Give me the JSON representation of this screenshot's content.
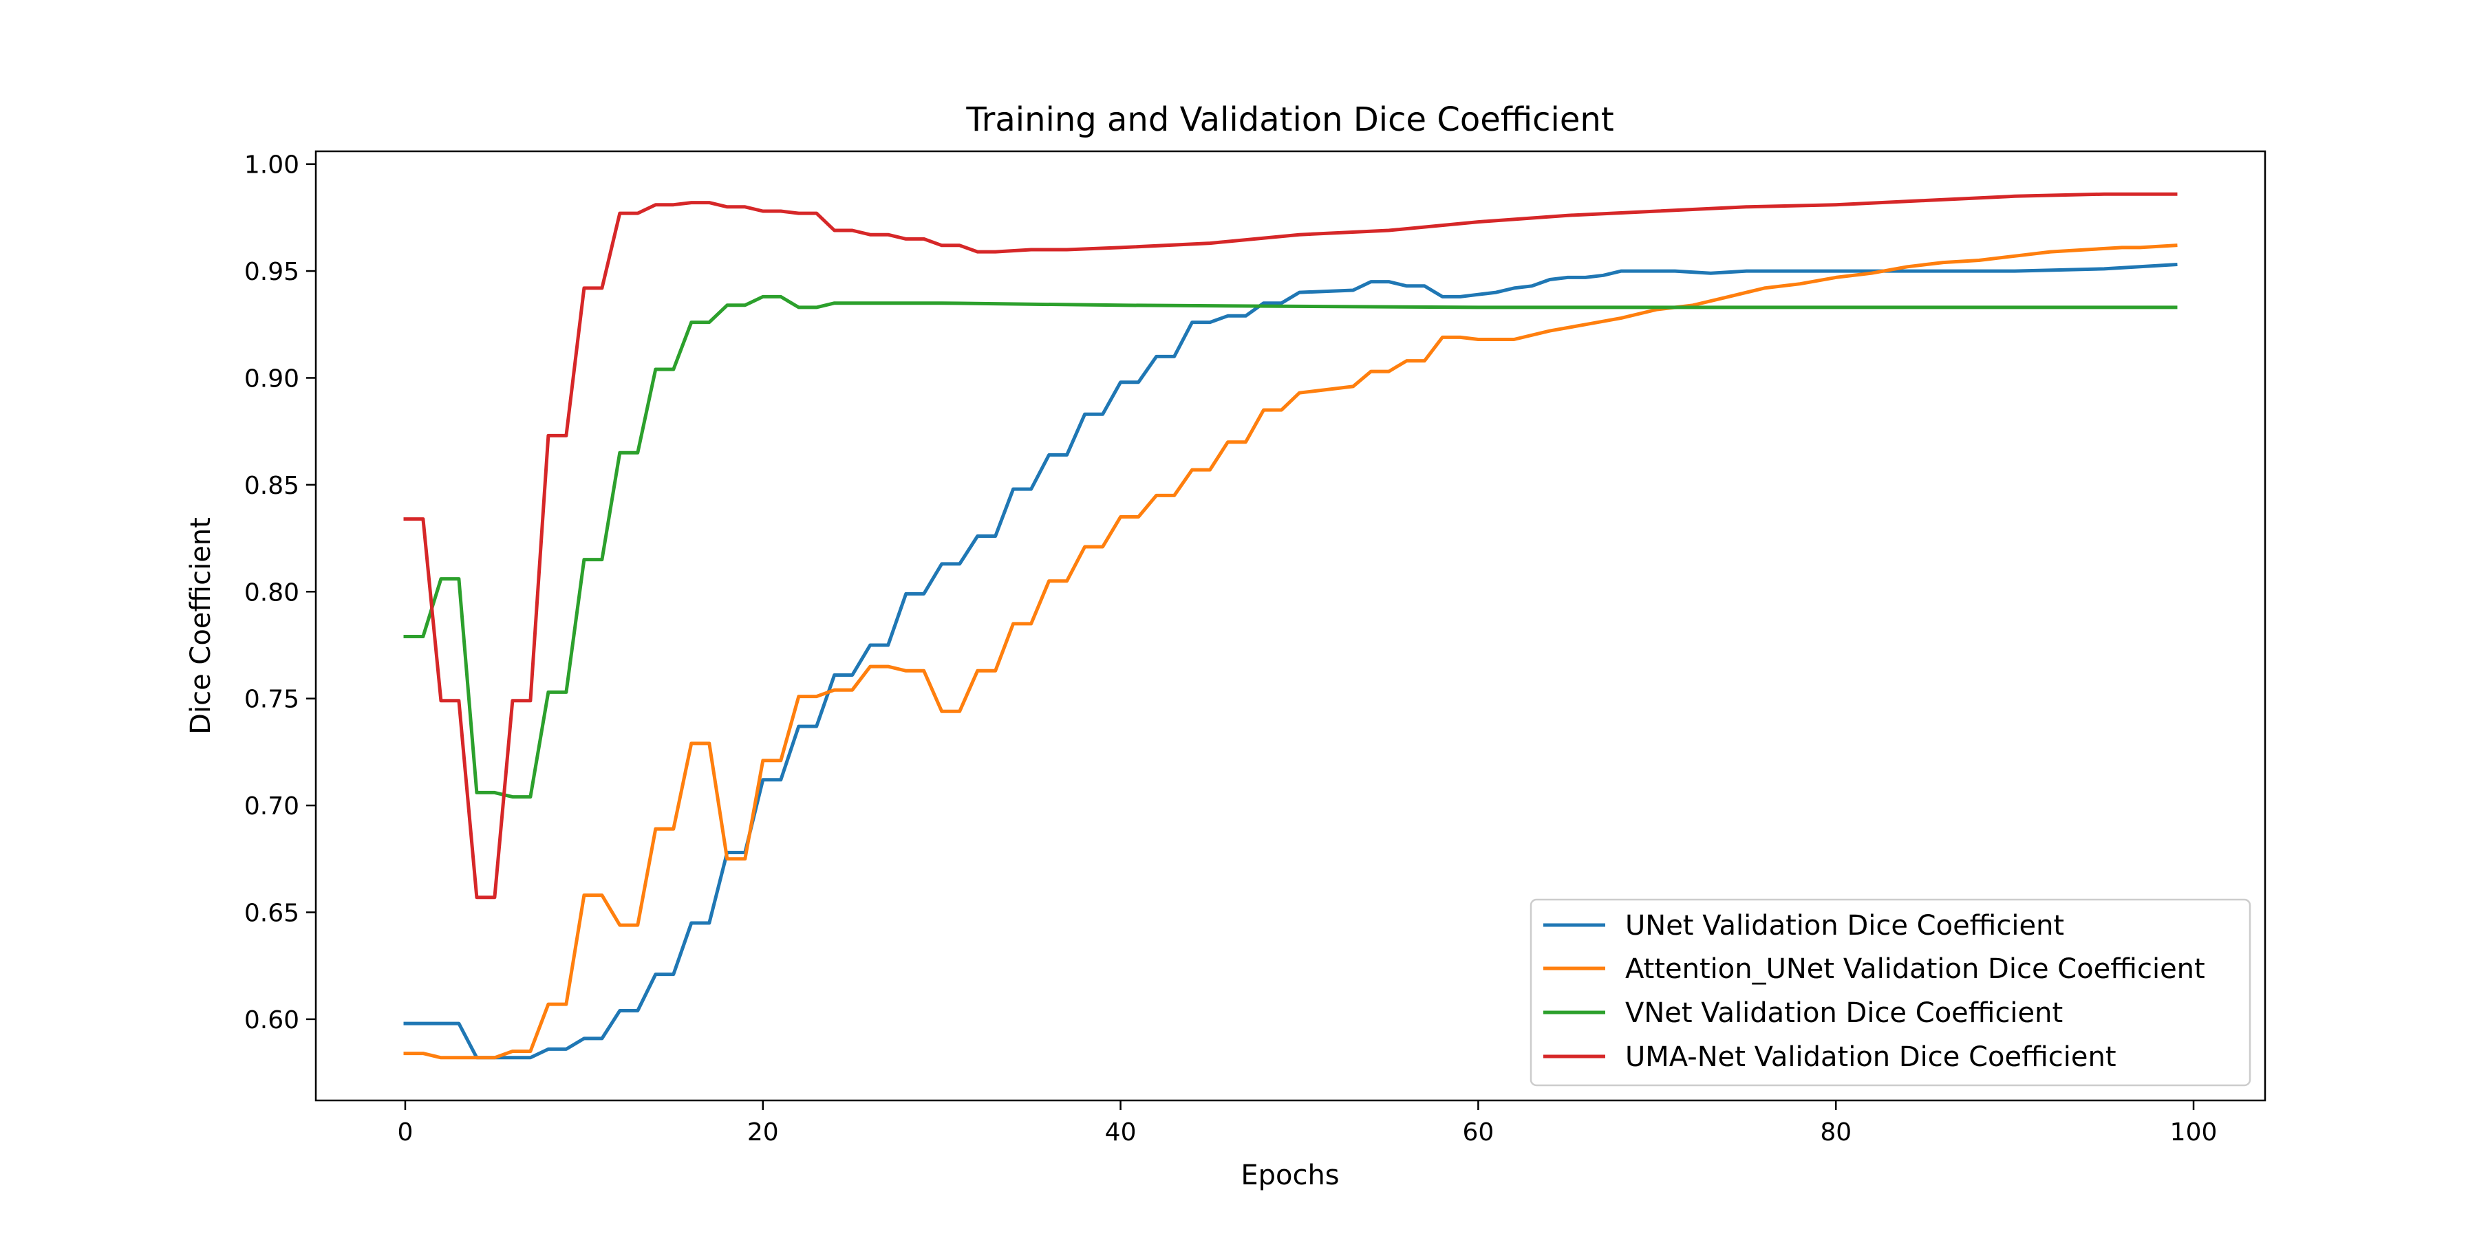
{
  "chart_data": {
    "type": "line",
    "title": "Training and Validation Dice Coefficient",
    "xlabel": "Epochs",
    "ylabel": "Dice Coefficient",
    "xlim": [
      -5,
      104
    ],
    "ylim": [
      0.562,
      1.006
    ],
    "xticks": [
      0,
      20,
      40,
      60,
      80,
      100
    ],
    "yticks": [
      0.6,
      0.65,
      0.7,
      0.75,
      0.8,
      0.85,
      0.9,
      0.95,
      1.0
    ],
    "grid": false,
    "legend": "lower-right",
    "series": [
      {
        "name": "UNet Validation Dice Coefficient",
        "color": "#1f77b4",
        "x": [
          0,
          1,
          2,
          3,
          4,
          5,
          6,
          7,
          8,
          9,
          10,
          11,
          12,
          13,
          14,
          15,
          16,
          17,
          18,
          19,
          20,
          21,
          22,
          23,
          24,
          25,
          26,
          27,
          28,
          29,
          30,
          31,
          32,
          33,
          34,
          35,
          36,
          37,
          38,
          39,
          40,
          41,
          42,
          43,
          44,
          45,
          46,
          47,
          48,
          49,
          50,
          53,
          54,
          55,
          56,
          57,
          58,
          59,
          60,
          61,
          62,
          63,
          64,
          65,
          66,
          67,
          68,
          71,
          73,
          75,
          80,
          90,
          95,
          97,
          99
        ],
        "values": [
          0.598,
          0.598,
          0.598,
          0.598,
          0.582,
          0.582,
          0.582,
          0.582,
          0.586,
          0.586,
          0.591,
          0.591,
          0.604,
          0.604,
          0.621,
          0.621,
          0.645,
          0.645,
          0.678,
          0.678,
          0.712,
          0.712,
          0.737,
          0.737,
          0.761,
          0.761,
          0.775,
          0.775,
          0.799,
          0.799,
          0.813,
          0.813,
          0.826,
          0.826,
          0.848,
          0.848,
          0.864,
          0.864,
          0.883,
          0.883,
          0.898,
          0.898,
          0.91,
          0.91,
          0.926,
          0.926,
          0.929,
          0.929,
          0.935,
          0.935,
          0.94,
          0.941,
          0.945,
          0.945,
          0.943,
          0.943,
          0.938,
          0.938,
          0.939,
          0.94,
          0.942,
          0.943,
          0.946,
          0.947,
          0.947,
          0.948,
          0.95,
          0.95,
          0.949,
          0.95,
          0.95,
          0.95,
          0.951,
          0.952,
          0.953
        ]
      },
      {
        "name": "Attention_UNet Validation Dice Coefficient",
        "color": "#ff7f0e",
        "x": [
          0,
          1,
          2,
          3,
          4,
          5,
          6,
          7,
          8,
          9,
          10,
          11,
          12,
          13,
          14,
          15,
          16,
          17,
          18,
          19,
          20,
          21,
          22,
          23,
          24,
          25,
          26,
          27,
          28,
          29,
          30,
          31,
          32,
          33,
          34,
          35,
          36,
          37,
          38,
          39,
          40,
          41,
          42,
          43,
          44,
          45,
          46,
          47,
          48,
          49,
          50,
          51,
          52,
          53,
          54,
          55,
          56,
          57,
          58,
          59,
          60,
          62,
          64,
          66,
          68,
          70,
          72,
          74,
          76,
          78,
          80,
          82,
          84,
          86,
          88,
          90,
          92,
          94,
          96,
          97,
          99
        ],
        "values": [
          0.584,
          0.584,
          0.582,
          0.582,
          0.582,
          0.582,
          0.585,
          0.585,
          0.607,
          0.607,
          0.658,
          0.658,
          0.644,
          0.644,
          0.689,
          0.689,
          0.729,
          0.729,
          0.675,
          0.675,
          0.721,
          0.721,
          0.751,
          0.751,
          0.754,
          0.754,
          0.765,
          0.765,
          0.763,
          0.763,
          0.744,
          0.744,
          0.763,
          0.763,
          0.785,
          0.785,
          0.805,
          0.805,
          0.821,
          0.821,
          0.835,
          0.835,
          0.845,
          0.845,
          0.857,
          0.857,
          0.87,
          0.87,
          0.885,
          0.885,
          0.893,
          0.894,
          0.895,
          0.896,
          0.903,
          0.903,
          0.908,
          0.908,
          0.919,
          0.919,
          0.918,
          0.918,
          0.922,
          0.925,
          0.928,
          0.932,
          0.934,
          0.938,
          0.942,
          0.944,
          0.947,
          0.949,
          0.952,
          0.954,
          0.955,
          0.957,
          0.959,
          0.96,
          0.961,
          0.961,
          0.962
        ]
      },
      {
        "name": "VNet Validation Dice Coefficient",
        "color": "#2ca02c",
        "x": [
          0,
          1,
          2,
          3,
          4,
          5,
          6,
          7,
          8,
          9,
          10,
          11,
          12,
          13,
          14,
          15,
          16,
          17,
          18,
          19,
          20,
          21,
          22,
          23,
          24,
          30,
          40,
          60,
          80,
          99
        ],
        "values": [
          0.779,
          0.779,
          0.806,
          0.806,
          0.706,
          0.706,
          0.704,
          0.704,
          0.753,
          0.753,
          0.815,
          0.815,
          0.865,
          0.865,
          0.904,
          0.904,
          0.926,
          0.926,
          0.934,
          0.934,
          0.938,
          0.938,
          0.933,
          0.933,
          0.935,
          0.935,
          0.934,
          0.933,
          0.933,
          0.933
        ]
      },
      {
        "name": "UMA-Net Validation Dice Coefficient",
        "color": "#d62728",
        "x": [
          0,
          1,
          2,
          3,
          4,
          5,
          6,
          7,
          8,
          9,
          10,
          11,
          12,
          13,
          14,
          15,
          16,
          17,
          18,
          19,
          20,
          21,
          22,
          23,
          24,
          25,
          26,
          27,
          28,
          29,
          30,
          31,
          32,
          33,
          35,
          37,
          40,
          45,
          50,
          55,
          60,
          65,
          70,
          75,
          80,
          85,
          90,
          95,
          99
        ],
        "values": [
          0.834,
          0.834,
          0.749,
          0.749,
          0.657,
          0.657,
          0.749,
          0.749,
          0.873,
          0.873,
          0.942,
          0.942,
          0.977,
          0.977,
          0.981,
          0.981,
          0.982,
          0.982,
          0.98,
          0.98,
          0.978,
          0.978,
          0.977,
          0.977,
          0.969,
          0.969,
          0.967,
          0.967,
          0.965,
          0.965,
          0.962,
          0.962,
          0.959,
          0.959,
          0.96,
          0.96,
          0.961,
          0.963,
          0.967,
          0.969,
          0.973,
          0.976,
          0.978,
          0.98,
          0.981,
          0.983,
          0.985,
          0.986,
          0.986
        ]
      }
    ]
  }
}
